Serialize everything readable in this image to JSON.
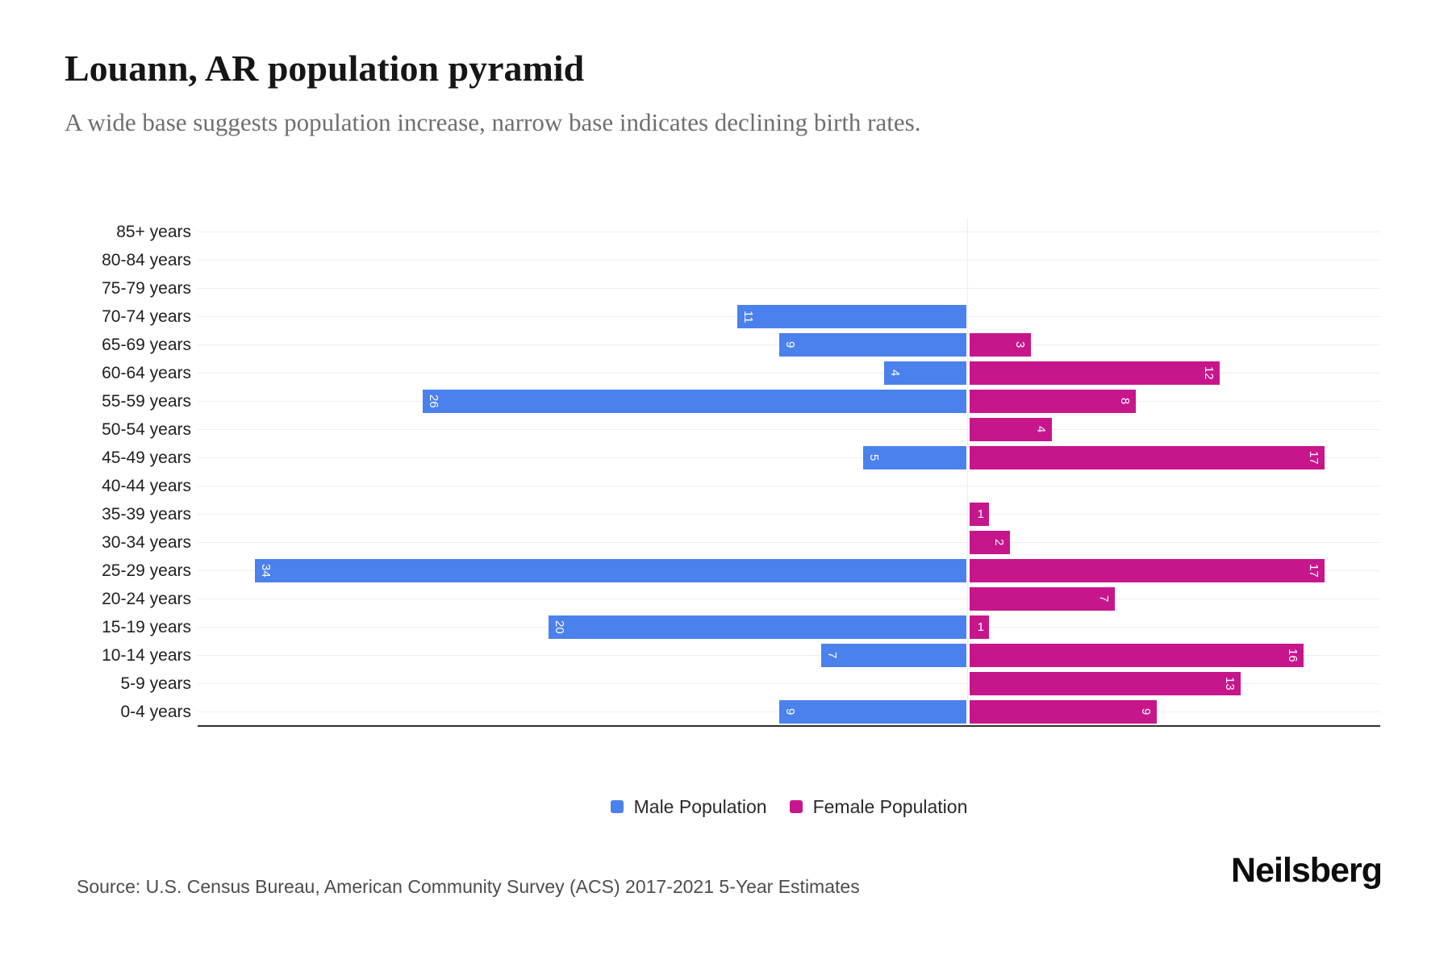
{
  "title": "Louann, AR population pyramid",
  "subtitle": "A wide base suggests population increase, narrow base indicates declining birth rates.",
  "source_note": "Source: U.S. Census Bureau, American Community Survey (ACS) 2017-2021 5-Year Estimates",
  "brand": "Neilsberg",
  "legend": [
    {
      "label": "Male Population",
      "color": "#4B81EC"
    },
    {
      "label": "Female Population",
      "color": "#C7168C"
    }
  ],
  "colors": {
    "male_bar": "#4B81EC",
    "female_bar": "#C7168C",
    "title_text": "#161616",
    "subtitle_text": "#6f6f6f",
    "axis_line": "#2e2e2e",
    "gridline": "#efefef",
    "bar_value_text": "#ffffff"
  },
  "chart_data": {
    "type": "bar",
    "variant": "population-pyramid",
    "orientation": "horizontal",
    "grid": true,
    "legend_position": "bottom-center",
    "value_axis_labels_visible": false,
    "categories": [
      "85+ years",
      "80-84 years",
      "75-79 years",
      "70-74 years",
      "65-69 years",
      "60-64 years",
      "55-59 years",
      "50-54 years",
      "45-49 years",
      "40-44 years",
      "35-39 years",
      "30-34 years",
      "25-29 years",
      "20-24 years",
      "15-19 years",
      "10-14 years",
      "5-9 years",
      "0-4 years"
    ],
    "series": [
      {
        "name": "Male Population",
        "side": "left",
        "color": "#4B81EC",
        "values": [
          0,
          0,
          0,
          11,
          9,
          4,
          26,
          0,
          5,
          0,
          0,
          0,
          34,
          0,
          20,
          7,
          0,
          9
        ]
      },
      {
        "name": "Female Population",
        "side": "right",
        "color": "#C7168C",
        "values": [
          0,
          0,
          0,
          0,
          3,
          12,
          8,
          4,
          17,
          0,
          1,
          2,
          17,
          7,
          1,
          16,
          13,
          9
        ]
      }
    ]
  }
}
